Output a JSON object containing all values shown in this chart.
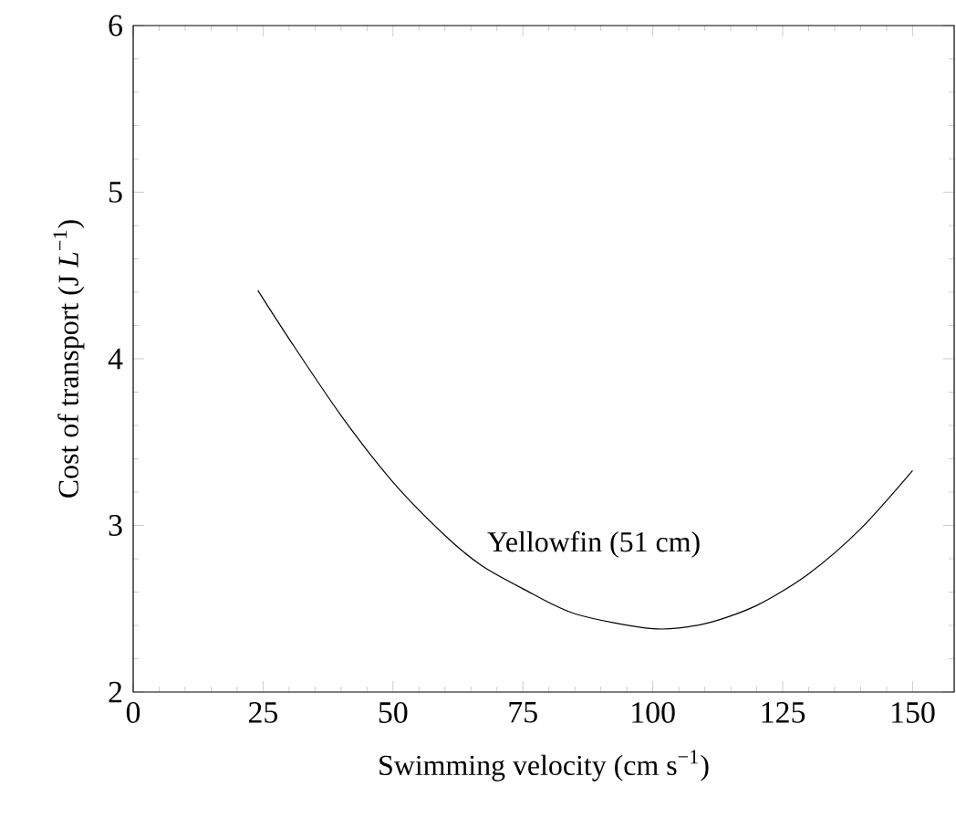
{
  "chart_data": {
    "type": "line",
    "xlabel": "Swimming velocity (cm s$^{−1}$)",
    "ylabel": "Cost of transport (J *L*$^{−1}$)",
    "x": [
      24,
      30,
      40,
      50,
      60,
      67,
      75,
      85,
      100,
      110,
      120,
      130,
      140,
      150
    ],
    "series": [
      {
        "color": "#000000",
        "values": [
          4.41,
          4.12,
          3.66,
          3.26,
          2.94,
          2.76,
          2.62,
          2.47,
          2.38,
          2.41,
          2.52,
          2.71,
          2.98,
          3.33
        ]
      }
    ],
    "xlim": [
      0,
      158
    ],
    "xticks": [
      0,
      25,
      50,
      75,
      100,
      125,
      150
    ],
    "ylim": [
      2,
      6
    ],
    "yticks": [
      2,
      3,
      4,
      5,
      6
    ],
    "grid": false,
    "marker": "none",
    "line_style": "solid",
    "annotations": [
      {
        "text": "Yellowfin (51 cm)",
        "x": 67,
        "y": 2.76
      }
    ]
  }
}
